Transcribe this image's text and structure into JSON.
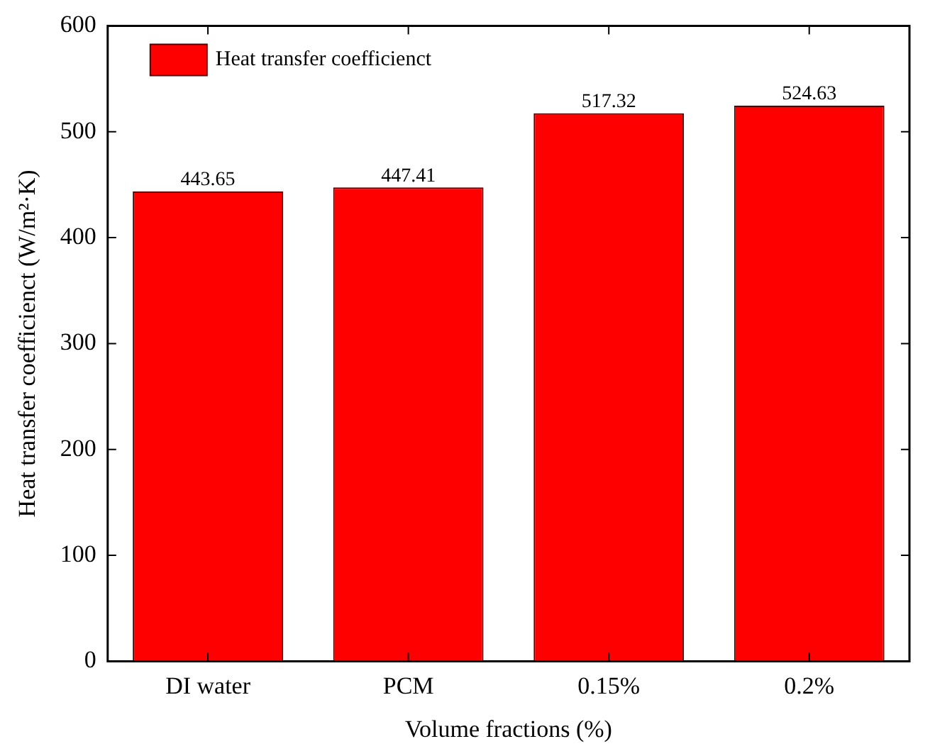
{
  "chart_data": {
    "type": "bar",
    "xlabel": "Volume fractions (%)",
    "ylabel": "Heat transfer coefficienct (W/m²·K)",
    "categories": [
      "DI water",
      "PCM",
      "0.15%",
      "0.2%"
    ],
    "series": [
      {
        "name": "Heat transfer coefficienct",
        "color": "#ff0000",
        "values": [
          443.65,
          447.41,
          517.32,
          524.63
        ]
      }
    ],
    "ylim": [
      0,
      600
    ],
    "yticks": [
      0,
      100,
      200,
      300,
      400,
      500,
      600
    ],
    "data_labels": true,
    "legend": "top left",
    "grid": false
  }
}
